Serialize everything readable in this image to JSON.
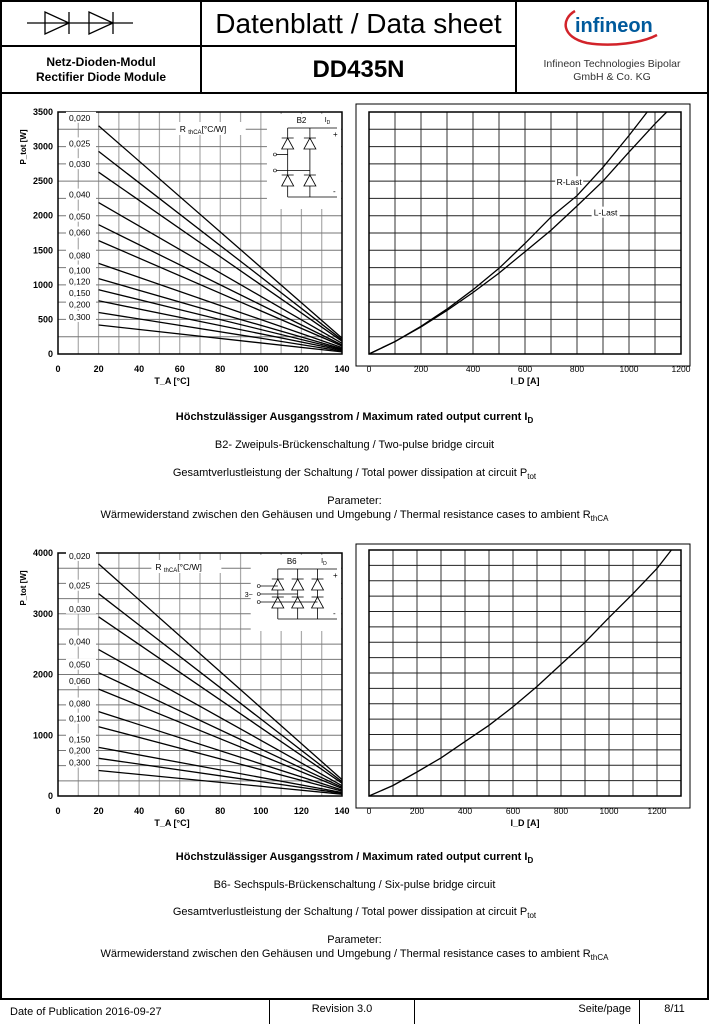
{
  "header": {
    "title": "Datenblatt / Data sheet",
    "module_de": "Netz-Dioden-Modul",
    "module_en": "Rectifier Diode Module",
    "part_number": "DD435N",
    "logo_text": "infineon",
    "company_line1": "Infineon Technologies Bipolar",
    "company_line2": "GmbH & Co. KG",
    "symbol_icon": "double-diode-symbol"
  },
  "sections": [
    {
      "title": "Höchstzulässiger Ausgangsstrom / Maximum rated output current I",
      "title_sub": "D",
      "circuit": "B2- Zweipuls-Brückenschaltung / Two-pulse bridge circuit",
      "power": "Gesamtverlustleistung der Schaltung / Total power dissipation at circuit P",
      "power_sub": "tot",
      "param_label": "Parameter:",
      "param": "Wärmewiderstand zwischen den Gehäusen und Umgebung / Thermal resistance cases to ambient R",
      "param_sub": "thCA"
    },
    {
      "title": "Höchstzulässiger Ausgangsstrom / Maximum rated output current I",
      "title_sub": "D",
      "circuit": "B6- Sechspuls-Brückenschaltung / Six-pulse bridge circuit",
      "power": "Gesamtverlustleistung der Schaltung / Total power dissipation at circuit P",
      "power_sub": "tot",
      "param_label": "Parameter:",
      "param": "Wärmewiderstand zwischen den Gehäusen und Umgebung / Thermal resistance cases to ambient R",
      "param_sub": "thCA"
    }
  ],
  "chart_data": [
    {
      "type": "line",
      "title": "",
      "xlabel": "T_A [°C]",
      "ylabel": "P_tot [W]",
      "xlim": [
        0,
        140
      ],
      "ylim": [
        0,
        3500
      ],
      "xticks": [
        0,
        20,
        40,
        60,
        80,
        100,
        120,
        140
      ],
      "yticks": [
        0,
        500,
        1000,
        1500,
        2000,
        2500,
        3000,
        3500
      ],
      "grid": true,
      "legend_title": "R thCA [°C/W]",
      "circuit_label": "B2",
      "current_label": "I D",
      "series": [
        {
          "name": "0,020",
          "x": [
            20,
            140
          ],
          "y": [
            3300,
            230
          ]
        },
        {
          "name": "0,025",
          "x": [
            20,
            140
          ],
          "y": [
            2930,
            205
          ]
        },
        {
          "name": "0,030",
          "x": [
            20,
            140
          ],
          "y": [
            2630,
            185
          ]
        },
        {
          "name": "0,040",
          "x": [
            20,
            140
          ],
          "y": [
            2190,
            155
          ]
        },
        {
          "name": "0,050",
          "x": [
            20,
            140
          ],
          "y": [
            1870,
            130
          ]
        },
        {
          "name": "0,060",
          "x": [
            20,
            140
          ],
          "y": [
            1640,
            115
          ]
        },
        {
          "name": "0,080",
          "x": [
            20,
            140
          ],
          "y": [
            1310,
            92
          ]
        },
        {
          "name": "0,100",
          "x": [
            20,
            140
          ],
          "y": [
            1090,
            76
          ]
        },
        {
          "name": "0,120",
          "x": [
            20,
            140
          ],
          "y": [
            930,
            65
          ]
        },
        {
          "name": "0,150",
          "x": [
            20,
            140
          ],
          "y": [
            770,
            54
          ]
        },
        {
          "name": "0,200",
          "x": [
            20,
            140
          ],
          "y": [
            600,
            42
          ]
        },
        {
          "name": "0,300",
          "x": [
            20,
            140
          ],
          "y": [
            420,
            30
          ]
        }
      ]
    },
    {
      "type": "line",
      "title": "",
      "xlabel": "I_D [A]",
      "ylabel": "",
      "xlim": [
        0,
        1200
      ],
      "ylim": [
        0,
        3500
      ],
      "xticks": [
        0,
        200,
        400,
        600,
        800,
        1000,
        1200
      ],
      "grid": true,
      "series": [
        {
          "name": "R-Last",
          "x": [
            0,
            100,
            200,
            300,
            400,
            500,
            600,
            700,
            800,
            900,
            1000,
            1070
          ],
          "y": [
            0,
            180,
            400,
            650,
            930,
            1240,
            1600,
            1980,
            2290,
            2700,
            3160,
            3500
          ]
        },
        {
          "name": "L-Last",
          "x": [
            0,
            100,
            200,
            300,
            400,
            500,
            600,
            700,
            800,
            900,
            1000,
            1100,
            1145
          ],
          "y": [
            0,
            180,
            390,
            630,
            890,
            1170,
            1480,
            1790,
            2140,
            2500,
            2920,
            3330,
            3500
          ]
        }
      ]
    },
    {
      "type": "line",
      "title": "",
      "xlabel": "T_A [°C]",
      "ylabel": "P_tot [W]",
      "xlim": [
        0,
        140
      ],
      "ylim": [
        0,
        4000
      ],
      "xticks": [
        0,
        20,
        40,
        60,
        80,
        100,
        120,
        140
      ],
      "yticks": [
        0,
        1000,
        2000,
        3000,
        4000
      ],
      "grid": true,
      "legend_title": "R thCA [°C/W]",
      "circuit_label": "B6",
      "circuit_input": "3~",
      "current_label": "I D",
      "series": [
        {
          "name": "0,020",
          "x": [
            20,
            140
          ],
          "y": [
            3820,
            270
          ]
        },
        {
          "name": "0,025",
          "x": [
            20,
            140
          ],
          "y": [
            3330,
            235
          ]
        },
        {
          "name": "0,030",
          "x": [
            20,
            140
          ],
          "y": [
            2950,
            210
          ]
        },
        {
          "name": "0,040",
          "x": [
            20,
            140
          ],
          "y": [
            2410,
            170
          ]
        },
        {
          "name": "0,050",
          "x": [
            20,
            140
          ],
          "y": [
            2030,
            145
          ]
        },
        {
          "name": "0,060",
          "x": [
            20,
            140
          ],
          "y": [
            1760,
            125
          ]
        },
        {
          "name": "0,080",
          "x": [
            20,
            140
          ],
          "y": [
            1390,
            98
          ]
        },
        {
          "name": "0,100",
          "x": [
            20,
            140
          ],
          "y": [
            1140,
            80
          ]
        },
        {
          "name": "0,150",
          "x": [
            20,
            140
          ],
          "y": [
            800,
            57
          ]
        },
        {
          "name": "0,200",
          "x": [
            20,
            140
          ],
          "y": [
            620,
            44
          ]
        },
        {
          "name": "0,300",
          "x": [
            20,
            140
          ],
          "y": [
            420,
            30
          ]
        }
      ]
    },
    {
      "type": "line",
      "title": "",
      "xlabel": "I_D [A]",
      "ylabel": "",
      "xlim": [
        0,
        1300
      ],
      "ylim": [
        0,
        4000
      ],
      "xticks": [
        0,
        200,
        400,
        600,
        800,
        1000,
        1200
      ],
      "grid": true,
      "series": [
        {
          "x": [
            0,
            100,
            200,
            300,
            400,
            500,
            600,
            700,
            800,
            900,
            1000,
            1100,
            1200,
            1260
          ],
          "y": [
            0,
            170,
            390,
            620,
            885,
            1150,
            1450,
            1780,
            2140,
            2500,
            2900,
            3290,
            3700,
            4000
          ]
        }
      ]
    }
  ],
  "footer": {
    "date_label": "Date of Publication  2016-09-27",
    "revision": "Revision 3.0",
    "page_label": "Seite/page",
    "page": "8/11"
  }
}
